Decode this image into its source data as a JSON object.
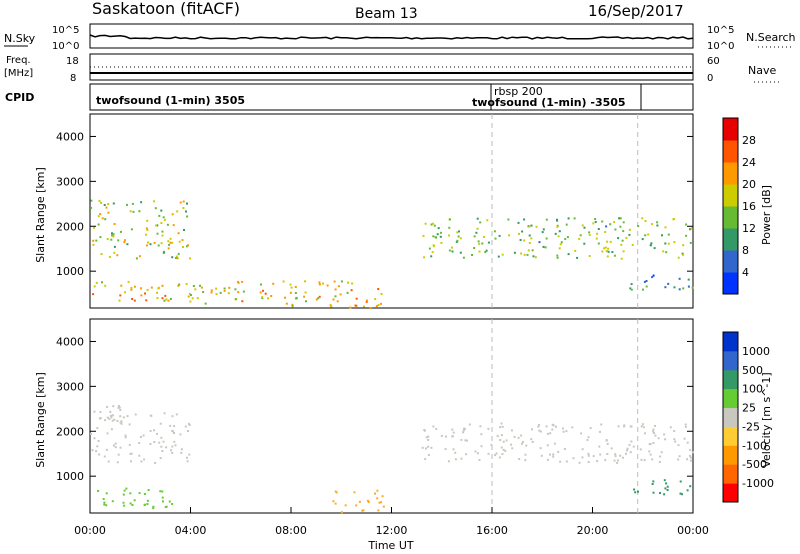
{
  "header": {
    "station": "Saskatoon (fitACF)",
    "beam": "Beam 13",
    "date": "16/Sep/2017"
  },
  "strips": {
    "nsky": {
      "label": "N.Sky",
      "tick_top": "10^5",
      "tick_bottom": "10^0",
      "right_tick_top": "10^5",
      "right_tick_bottom": "10^0",
      "right_label": "N.Search"
    },
    "freq": {
      "label_line1": "Freq.",
      "label_line2": "[MHz]",
      "tick_top": "18",
      "tick_bottom": "8",
      "right_tick_top": "60",
      "right_tick_bottom": "0",
      "right_label": "Nave"
    },
    "cpid": {
      "label": "CPID",
      "annotations": [
        {
          "text": "twofsound (1-min) 3505",
          "start_hour": 0.0
        },
        {
          "text": "rbsp 200",
          "start_hour": 16.0
        },
        {
          "text": "twofsound (1-min) -3505",
          "start_hour": 16.0
        }
      ]
    }
  },
  "chart_data": [
    {
      "type": "heatmap",
      "panel": "power",
      "ylabel": "Slant Range [km]",
      "ylim": [
        180,
        4500
      ],
      "y_ticks": [
        "1000",
        "2000",
        "3000",
        "4000"
      ],
      "colorbar": {
        "label": "Power [dB]",
        "ticks": [
          "4",
          "8",
          "12",
          "16",
          "20",
          "24",
          "28"
        ],
        "range": [
          0,
          30
        ],
        "colors": [
          "#0033ff",
          "#3366cc",
          "#339966",
          "#66bb33",
          "#cccc00",
          "#ff9900",
          "#ff5500",
          "#e60000"
        ]
      },
      "bands": [
        {
          "x": [
            0.0,
            4.0
          ],
          "y": [
            1300,
            2600
          ],
          "level": 15
        },
        {
          "x": [
            0.0,
            3.5
          ],
          "y": [
            300,
            800
          ],
          "level": 20
        },
        {
          "x": [
            3.5,
            11.7
          ],
          "y": [
            200,
            800
          ],
          "level": 18
        },
        {
          "x": [
            13.2,
            24.0
          ],
          "y": [
            1300,
            2200
          ],
          "level": 13
        },
        {
          "x": [
            21.2,
            24.0
          ],
          "y": [
            600,
            950
          ],
          "level": 9
        }
      ]
    },
    {
      "type": "heatmap",
      "panel": "velocity",
      "xlabel": "Time UT",
      "ylabel": "Slant Range [km]",
      "ylim": [
        180,
        4500
      ],
      "y_ticks": [
        "1000",
        "2000",
        "3000",
        "4000"
      ],
      "x_ticks": [
        "00:00",
        "04:00",
        "08:00",
        "12:00",
        "16:00",
        "20:00",
        "00:00"
      ],
      "xlim": [
        0,
        24
      ],
      "colorbar": {
        "label": "Velocity [m s^-1]",
        "ticks": [
          "-1000",
          "-500",
          "-100",
          "-25",
          "25",
          "100",
          "500",
          "1000"
        ],
        "colors": [
          "#ff0000",
          "#ff6600",
          "#ff9900",
          "#ffcc33",
          "#c8c8c0",
          "#66cc33",
          "#339966",
          "#3366cc",
          "#0033cc"
        ]
      },
      "bands": [
        {
          "x": [
            0.0,
            4.0
          ],
          "y": [
            1300,
            2600
          ],
          "color": "#c8c8c0"
        },
        {
          "x": [
            0.0,
            3.5
          ],
          "y": [
            300,
            800
          ],
          "color": "#66cc33"
        },
        {
          "x": [
            9.5,
            11.7
          ],
          "y": [
            200,
            700
          ],
          "color": "#ffaa22"
        },
        {
          "x": [
            13.2,
            24.0
          ],
          "y": [
            1300,
            2200
          ],
          "color": "#c8c8c0"
        },
        {
          "x": [
            21.2,
            24.0
          ],
          "y": [
            600,
            950
          ],
          "color": "#339966"
        }
      ]
    }
  ]
}
